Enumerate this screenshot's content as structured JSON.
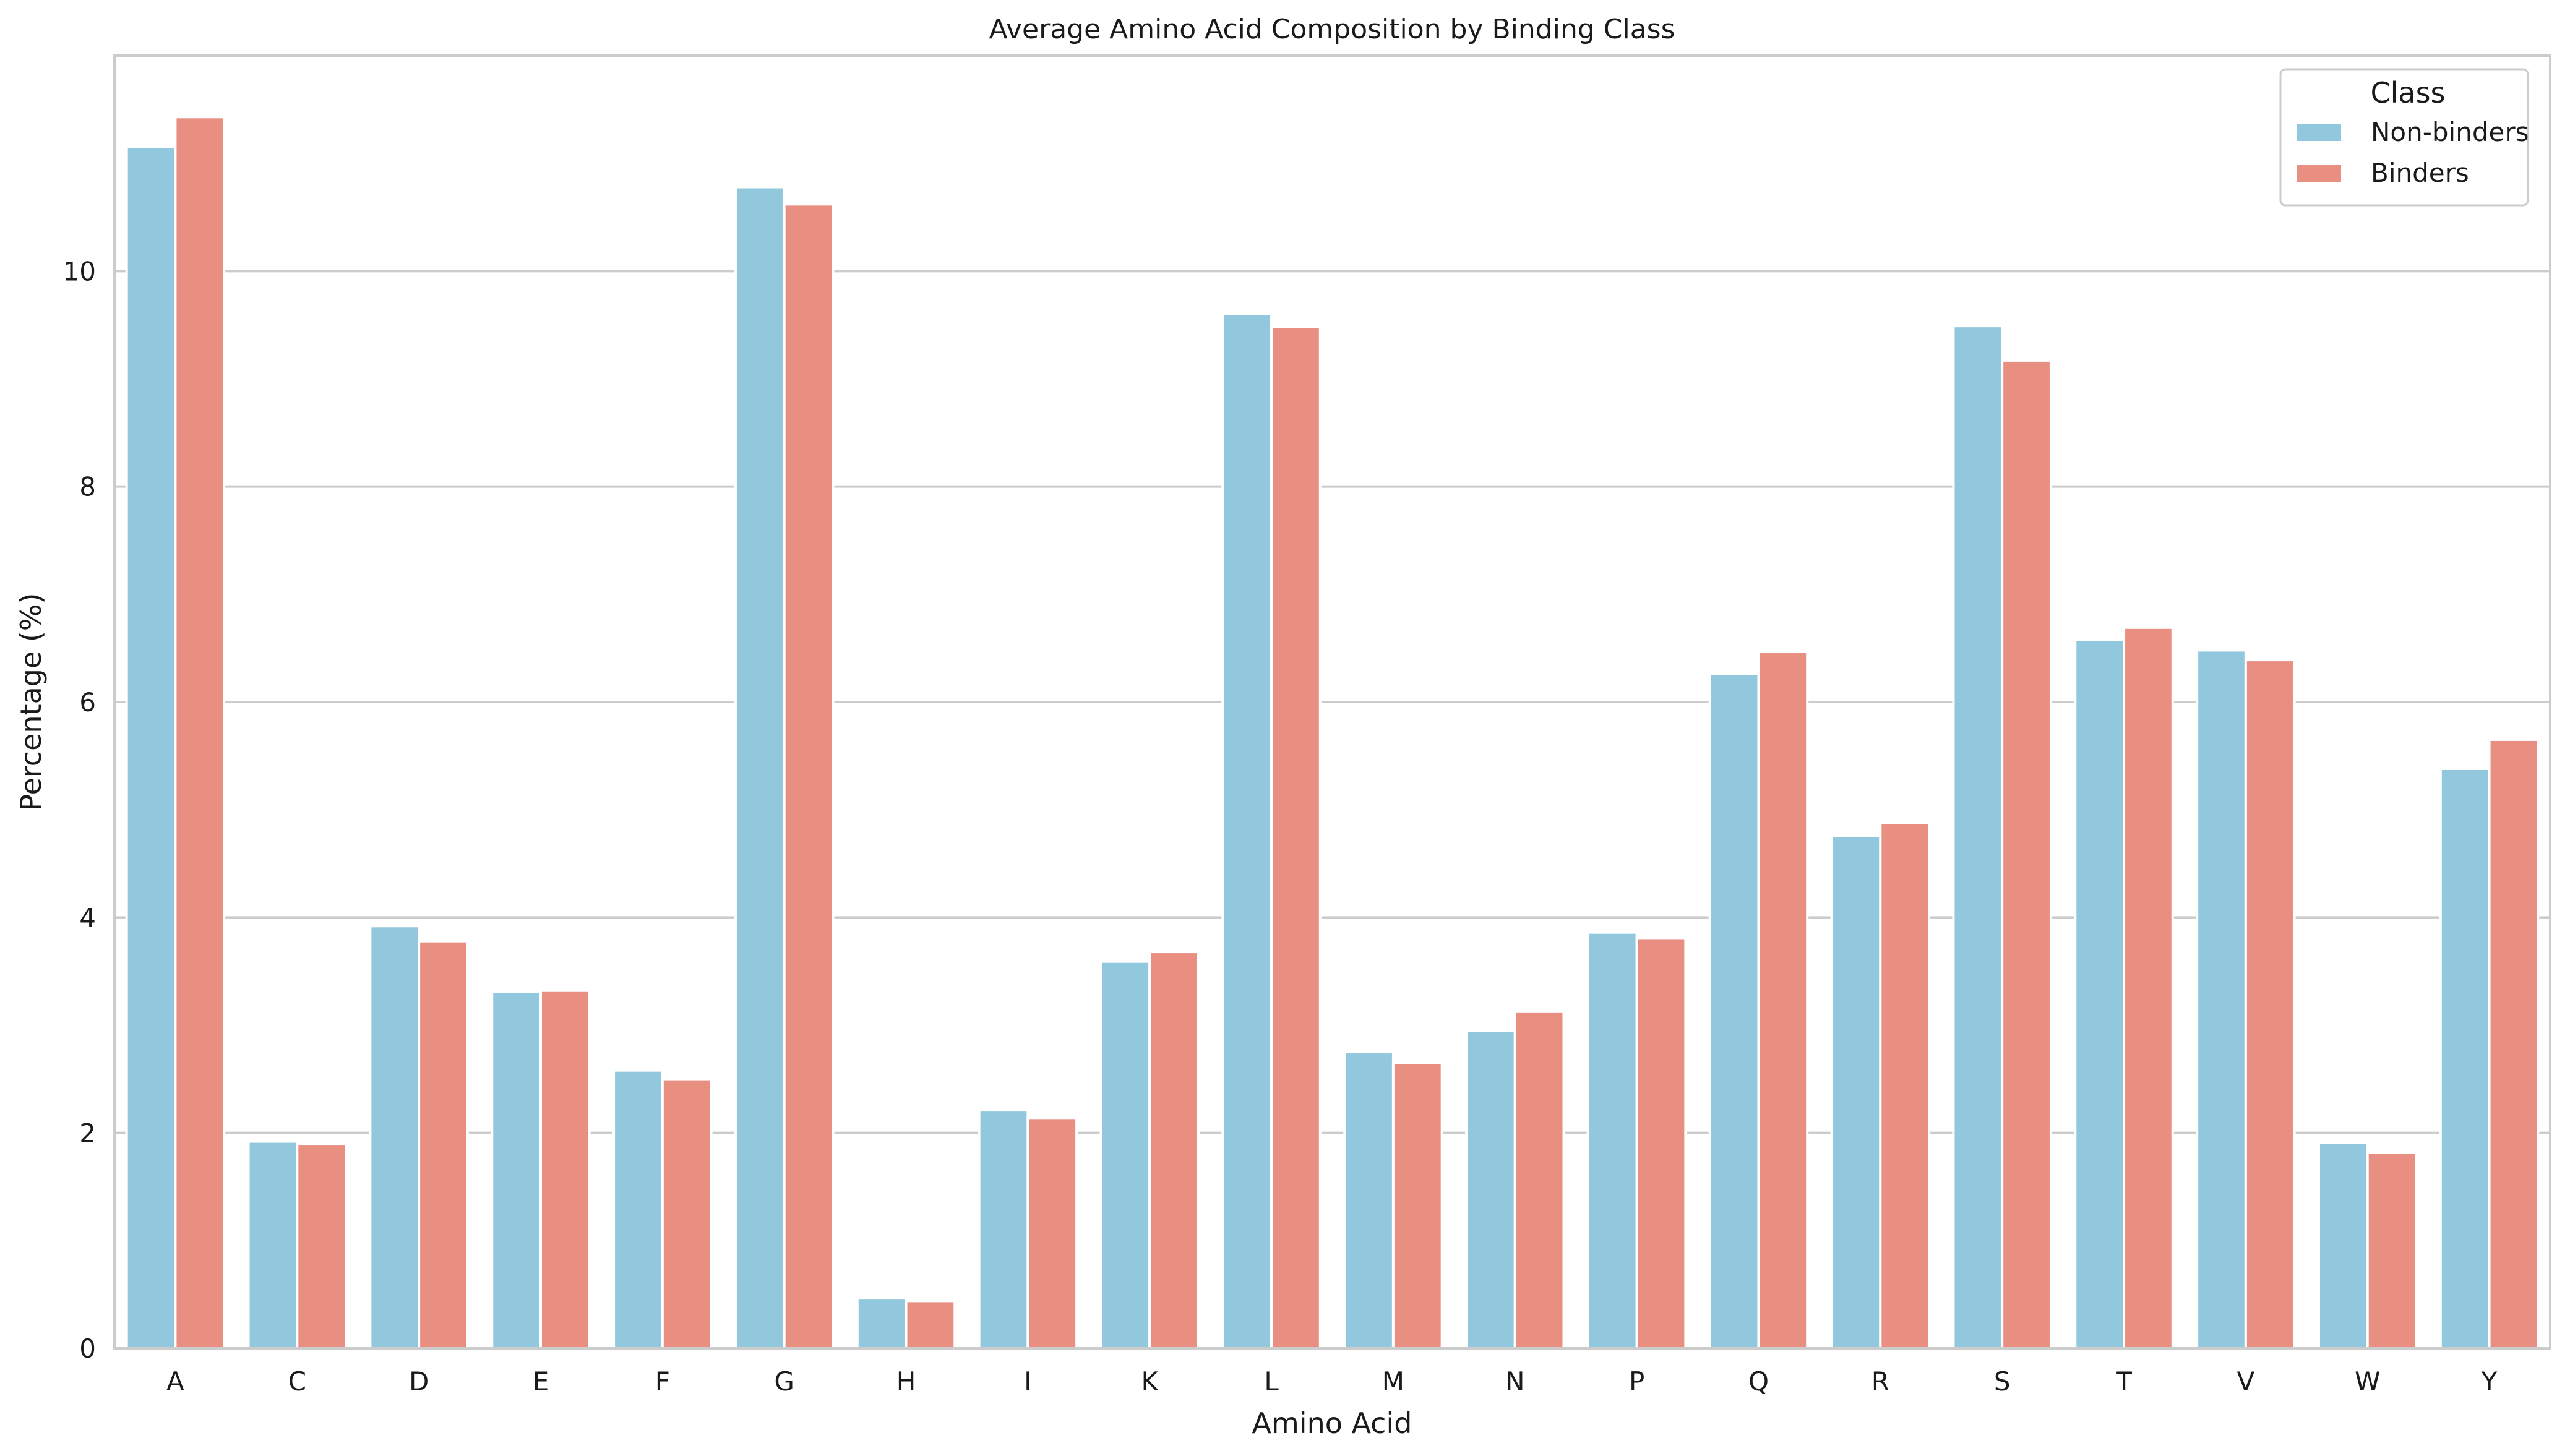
{
  "chart_data": {
    "type": "bar",
    "title": "Average Amino Acid Composition by Binding Class",
    "xlabel": "Amino Acid",
    "ylabel": "Percentage (%)",
    "categories": [
      "A",
      "C",
      "D",
      "E",
      "F",
      "G",
      "H",
      "I",
      "K",
      "L",
      "M",
      "N",
      "P",
      "Q",
      "R",
      "S",
      "T",
      "V",
      "W",
      "Y"
    ],
    "series": [
      {
        "name": "Non-binders",
        "color": "#92c8de",
        "values": [
          11.15,
          1.92,
          3.92,
          3.31,
          2.58,
          10.78,
          0.47,
          2.21,
          3.59,
          9.6,
          2.75,
          2.95,
          3.86,
          6.26,
          4.76,
          9.49,
          6.58,
          6.48,
          1.91,
          5.38
        ]
      },
      {
        "name": "Binders",
        "color": "#e98f82",
        "values": [
          11.43,
          1.9,
          3.78,
          3.32,
          2.5,
          10.62,
          0.44,
          2.14,
          3.68,
          9.48,
          2.65,
          3.13,
          3.81,
          6.47,
          4.88,
          9.17,
          6.69,
          6.39,
          1.82,
          5.65
        ]
      }
    ],
    "yticks": [
      "0",
      "2",
      "4",
      "6",
      "8",
      "10"
    ],
    "ylim": [
      0,
      12
    ],
    "grid": "horizontal",
    "legend": {
      "title": "Class",
      "position": "top-right"
    }
  }
}
